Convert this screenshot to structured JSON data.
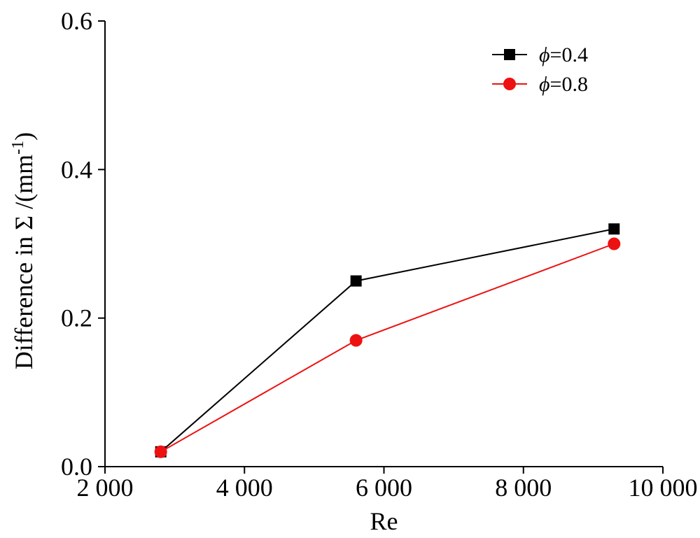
{
  "chart_data": {
    "type": "line",
    "xlabel": "Re",
    "ylabel": {
      "main": "Difference in  Σ /(mm",
      "superscript": "-1",
      "close": ")"
    },
    "xlim": [
      2000,
      10000
    ],
    "ylim": [
      0.0,
      0.6
    ],
    "x_ticks": [
      2000,
      4000,
      6000,
      8000,
      10000
    ],
    "x_tick_labels": [
      "2 000",
      "4 000",
      "6 000",
      "8 000",
      "10 000"
    ],
    "y_ticks": [
      0.0,
      0.2,
      0.4,
      0.6
    ],
    "y_tick_labels": [
      "0.0",
      "0.2",
      "0.4",
      "0.6"
    ],
    "grid": false,
    "legend_position": "top-right",
    "series": [
      {
        "name_symbol": "ϕ",
        "name_value": "=0.4",
        "marker": "square",
        "color": "#000000",
        "x": [
          2800,
          5600,
          9300
        ],
        "y": [
          0.02,
          0.25,
          0.32
        ]
      },
      {
        "name_symbol": "ϕ",
        "name_value": "=0.8",
        "marker": "circle",
        "color": "#ee1111",
        "x": [
          2800,
          5600,
          9300
        ],
        "y": [
          0.02,
          0.17,
          0.3
        ]
      }
    ]
  }
}
